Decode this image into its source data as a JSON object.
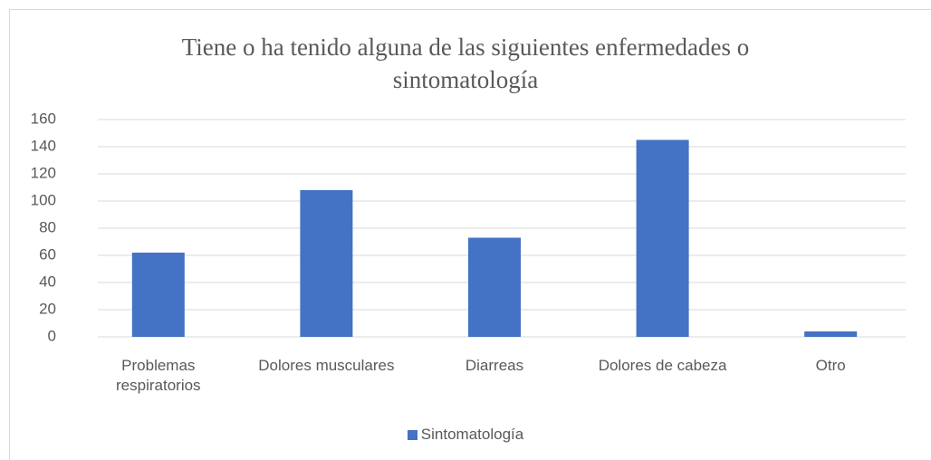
{
  "chart_data": {
    "type": "bar",
    "title": "Tiene o ha tenido alguna de las siguientes enfermedades o sintomatología",
    "categories": [
      "Problemas respiratorios",
      "Dolores musculares",
      "Diarreas",
      "Dolores de cabeza",
      "Otro"
    ],
    "series": [
      {
        "name": "Sintomatología",
        "color": "#4472c4",
        "values": [
          62,
          108,
          73,
          145,
          4
        ]
      }
    ],
    "ylim": [
      0,
      160
    ],
    "yticks": [
      0,
      20,
      40,
      60,
      80,
      100,
      120,
      140,
      160
    ],
    "grid": true,
    "legend": "bottom"
  }
}
